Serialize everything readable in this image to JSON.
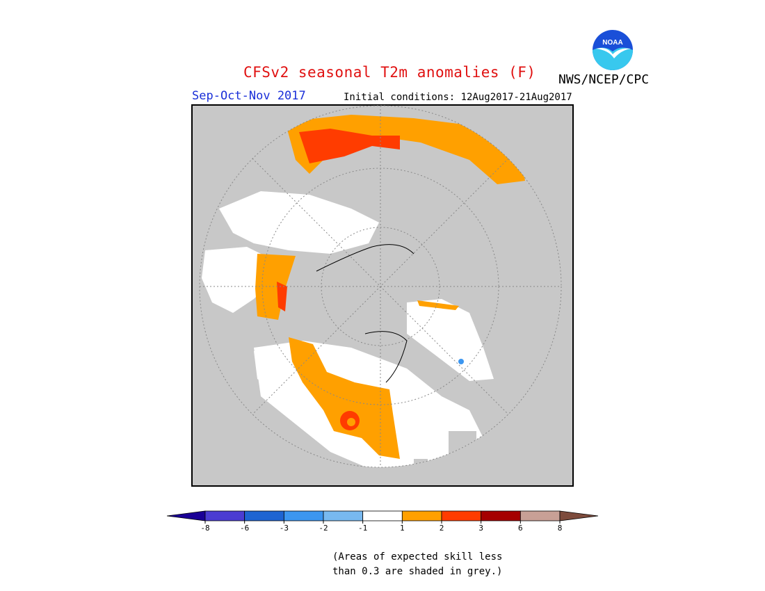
{
  "title": "CFSv2 seasonal T2m anomalies (F)",
  "agency": "NWS/NCEP/CPC",
  "logo": {
    "text": "NOAA",
    "colors": {
      "blue": "#1a4fd8",
      "cyan": "#38c8ee",
      "white": "#ffffff"
    }
  },
  "season": "Sep-Oct-Nov 2017",
  "initial_conditions": "Initial conditions: 12Aug2017-21Aug2017",
  "map": {
    "projection": "polar-stereographic-north",
    "background_color": "#c8c8c8",
    "coastline_color": "#000000"
  },
  "legend": {
    "categories": [
      {
        "range": "< -8",
        "color": "#1a0096"
      },
      {
        "range": "-8 to -6",
        "color": "#4b3cd2"
      },
      {
        "range": "-6 to -3",
        "color": "#1e64d2"
      },
      {
        "range": "-3 to -2",
        "color": "#3c96f0"
      },
      {
        "range": "-2 to -1",
        "color": "#78b9f0"
      },
      {
        "range": "-1 to 1",
        "color": "#ffffff"
      },
      {
        "range": "1 to 2",
        "color": "#ffa000"
      },
      {
        "range": "2 to 3",
        "color": "#ff3c00"
      },
      {
        "range": "3 to 6",
        "color": "#a50000"
      },
      {
        "range": "6 to 8",
        "color": "#c8a096"
      },
      {
        "range": "> 8",
        "color": "#7d4b3c"
      }
    ],
    "tick_labels": [
      "-8",
      "-6",
      "-3",
      "-2",
      "-1",
      "1",
      "2",
      "3",
      "6",
      "8"
    ]
  },
  "note_lines": [
    "(Areas of expected skill less",
    "than 0.3 are shaded in grey.)"
  ]
}
